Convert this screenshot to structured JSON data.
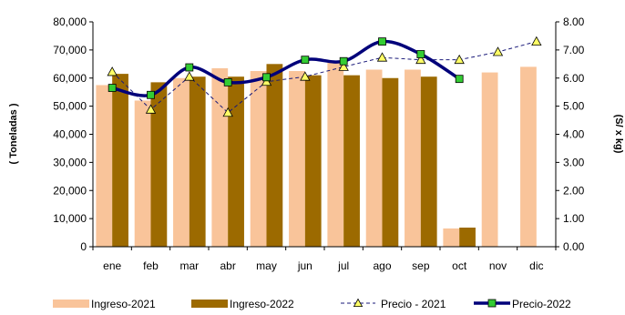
{
  "chart_data": {
    "type": "bar",
    "categories": [
      "ene",
      "feb",
      "mar",
      "abr",
      "may",
      "jun",
      "jul",
      "ago",
      "sep",
      "oct",
      "nov",
      "dic"
    ],
    "series": [
      {
        "name": "Ingreso-2021",
        "axis": "left",
        "kind": "bar",
        "color": "#F9C49A",
        "values": [
          57500,
          52000,
          60000,
          63500,
          62500,
          62500,
          65500,
          63000,
          63000,
          6500,
          62000,
          64000
        ]
      },
      {
        "name": "Ingreso-2022",
        "axis": "left",
        "kind": "bar",
        "color": "#9C6A00",
        "values": [
          61500,
          58500,
          60500,
          60500,
          65000,
          61000,
          61000,
          60000,
          60500,
          6800,
          null,
          null
        ]
      },
      {
        "name": "Precio - 2021",
        "axis": "right",
        "kind": "line",
        "color": "#1A1A7A",
        "marker_color": "#FFFF66",
        "values": [
          6.22,
          4.88,
          6.05,
          4.77,
          5.87,
          6.05,
          6.4,
          6.73,
          6.65,
          6.65,
          6.93,
          7.3
        ]
      },
      {
        "name": "Precio-2022",
        "axis": "right",
        "kind": "line",
        "color": "#00007A",
        "marker_color": "#33CC33",
        "values": [
          5.65,
          5.4,
          6.38,
          5.85,
          6.03,
          6.65,
          6.6,
          7.3,
          6.85,
          5.97,
          null,
          null
        ]
      }
    ],
    "ylabel_left": "( Toneladas )",
    "ylabel_right": "(S/ x kg)",
    "ylim_left": [
      0,
      80000
    ],
    "ylim_right": [
      0,
      8
    ],
    "yticks_left": [
      "0",
      "10,000",
      "20,000",
      "30,000",
      "40,000",
      "50,000",
      "60,000",
      "70,000",
      "80,000"
    ],
    "yticks_right": [
      "0.00",
      "1.00",
      "2.00",
      "3.00",
      "4.00",
      "5.00",
      "6.00",
      "7.00",
      "8.00"
    ],
    "grid": false,
    "legend_position": "bottom"
  }
}
